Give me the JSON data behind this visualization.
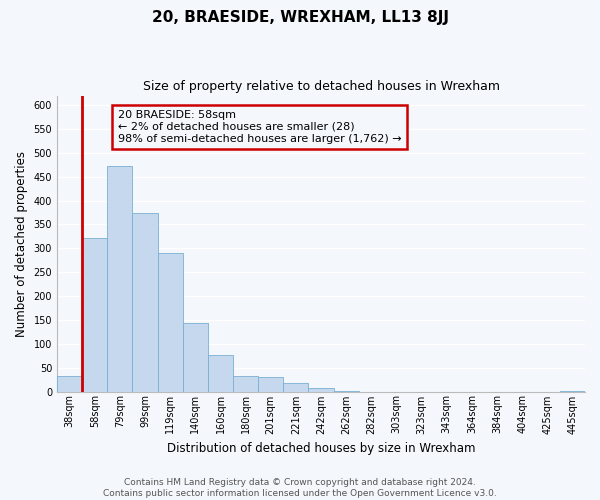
{
  "title": "20, BRAESIDE, WREXHAM, LL13 8JJ",
  "subtitle": "Size of property relative to detached houses in Wrexham",
  "xlabel": "Distribution of detached houses by size in Wrexham",
  "ylabel": "Number of detached properties",
  "bar_labels": [
    "38sqm",
    "58sqm",
    "79sqm",
    "99sqm",
    "119sqm",
    "140sqm",
    "160sqm",
    "180sqm",
    "201sqm",
    "221sqm",
    "242sqm",
    "262sqm",
    "282sqm",
    "303sqm",
    "323sqm",
    "343sqm",
    "364sqm",
    "384sqm",
    "404sqm",
    "425sqm",
    "445sqm"
  ],
  "bar_values": [
    32,
    322,
    472,
    375,
    290,
    143,
    76,
    33,
    30,
    17,
    8,
    1,
    0,
    0,
    0,
    0,
    0,
    0,
    0,
    0,
    2
  ],
  "bar_color": "#c5d8ed",
  "bar_edge_color": "#7aafd4",
  "highlight_bar_index": 1,
  "highlight_color": "#cc0000",
  "ylim": [
    0,
    620
  ],
  "yticks": [
    0,
    50,
    100,
    150,
    200,
    250,
    300,
    350,
    400,
    450,
    500,
    550,
    600
  ],
  "annotation_title": "20 BRAESIDE: 58sqm",
  "annotation_line1": "← 2% of detached houses are smaller (28)",
  "annotation_line2": "98% of semi-detached houses are larger (1,762) →",
  "footer_line1": "Contains HM Land Registry data © Crown copyright and database right 2024.",
  "footer_line2": "Contains public sector information licensed under the Open Government Licence v3.0.",
  "background_color": "#f4f7fb",
  "plot_bg_color": "#f4f7fb",
  "grid_color": "#ffffff",
  "title_fontsize": 11,
  "subtitle_fontsize": 9,
  "axis_label_fontsize": 8.5,
  "tick_fontsize": 7,
  "footer_fontsize": 6.5,
  "annotation_fontsize": 8
}
